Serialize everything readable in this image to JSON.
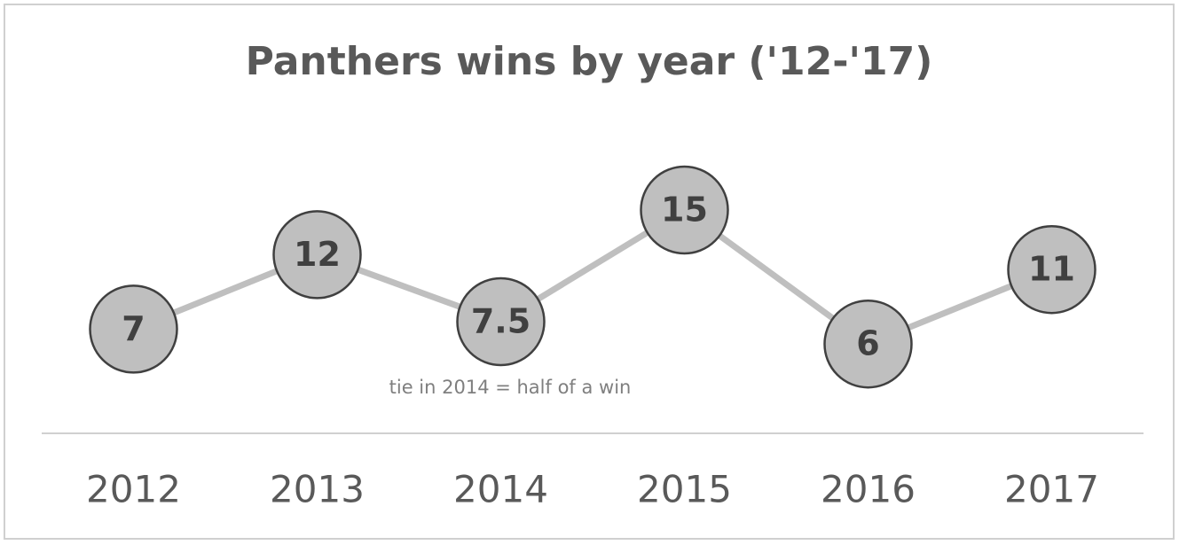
{
  "chart_data": {
    "type": "line",
    "title": "Panthers wins by year ('12-'17)",
    "categories": [
      "2012",
      "2013",
      "2014",
      "2015",
      "2016",
      "2017"
    ],
    "values": [
      7,
      12,
      7.5,
      15,
      6,
      11
    ],
    "color": "#bfbfbf",
    "marker_fill": "#bfbfbf",
    "marker_stroke": "#404040",
    "ylim": [
      0,
      20
    ],
    "annotation": "tie in 2014 = half of a win"
  }
}
